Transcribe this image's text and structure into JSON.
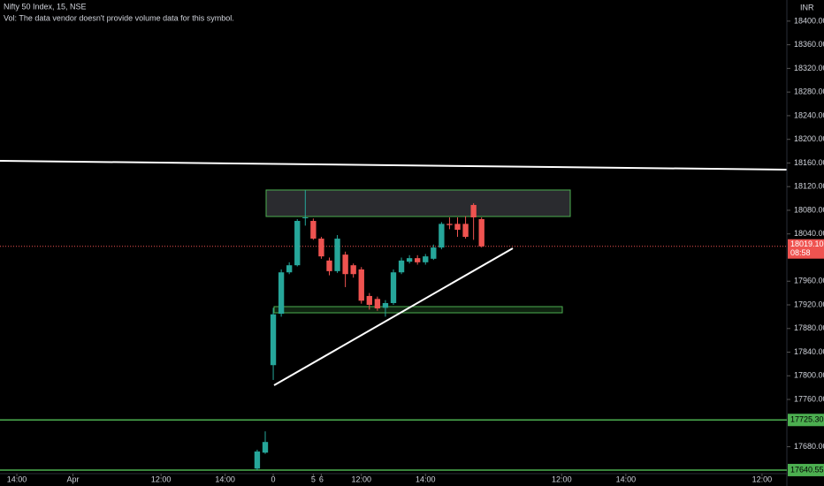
{
  "chart_data": {
    "type": "candlestick",
    "title": "Nifty 50 Index, 15, NSE",
    "subtitle": "Vol: The data vendor doesn't provide volume data for this symbol.",
    "currency": "INR",
    "up_color": "#26a69a",
    "down_color": "#ef5350",
    "x": [
      -2,
      -1,
      0,
      1,
      2,
      3,
      4,
      5,
      6,
      7,
      8,
      9,
      10,
      11,
      12,
      13,
      14,
      15,
      16,
      17,
      18,
      19,
      20,
      21,
      22,
      23,
      24,
      25,
      26
    ],
    "open": [
      17643,
      17670,
      17818,
      17905,
      17975,
      17987,
      18067,
      18062,
      18032,
      17995,
      17977,
      18005,
      17987,
      17980,
      17935,
      17930,
      17915,
      17923,
      17975,
      17993,
      17999,
      17992,
      17998,
      18017,
      18057,
      18057,
      18057,
      18089,
      18065
    ],
    "high": [
      17675,
      17706,
      17915,
      17980,
      17992,
      18065,
      18114,
      18066,
      18035,
      18000,
      18038,
      18010,
      17990,
      17984,
      17940,
      17934,
      17928,
      17980,
      18000,
      18004,
      18004,
      18006,
      18022,
      18060,
      18068,
      18068,
      18070,
      18092,
      18068
    ],
    "low": [
      17640,
      17668,
      17793,
      17900,
      17972,
      17985,
      18054,
      18030,
      17998,
      17970,
      17974,
      17950,
      17966,
      17922,
      17912,
      17910,
      17900,
      17920,
      17972,
      17990,
      17988,
      17988,
      17996,
      18014,
      18048,
      18035,
      18032,
      18030,
      18017
    ],
    "close": [
      17672,
      17688,
      17904,
      17975,
      17987,
      18062,
      18068,
      18032,
      18002,
      17977,
      18032,
      17972,
      17972,
      17927,
      17920,
      17914,
      17923,
      17975,
      17995,
      17999,
      17992,
      18002,
      18017,
      18057,
      18055,
      18047,
      18035,
      18068,
      18019
    ],
    "xlim": [
      -34.1,
      64.1
    ],
    "xticks": [
      {
        "value": -32,
        "label": "14:00"
      },
      {
        "value": -25,
        "label": "Apr"
      },
      {
        "value": -14,
        "label": "12:00"
      },
      {
        "value": -6,
        "label": "14:00"
      },
      0,
      {
        "value": 11,
        "label": "12:00"
      },
      {
        "value": 19,
        "label": "14:00"
      },
      5,
      {
        "value": 36,
        "label": "12:00"
      },
      {
        "value": 44,
        "label": "14:00"
      },
      6,
      {
        "value": 61,
        "label": "12:00"
      }
    ],
    "ylim": [
      17634.5,
      18435.7
    ],
    "yticks": [
      {
        "value": 18400,
        "label": "18400.00"
      },
      {
        "value": 18360,
        "label": "18360.00"
      },
      {
        "value": 18320,
        "label": "18320.00"
      },
      {
        "value": 18280,
        "label": "18280.00"
      },
      {
        "value": 18240,
        "label": "18240.00"
      },
      {
        "value": 18200,
        "label": "18200.00"
      },
      {
        "value": 18160,
        "label": "18160.00"
      },
      {
        "value": 18120,
        "label": "18120.00"
      },
      {
        "value": 18080,
        "label": "18080.00"
      },
      {
        "value": 18040,
        "label": "18040.00"
      },
      {
        "value": 17960,
        "label": "17960.00"
      },
      {
        "value": 17920,
        "label": "17920.00"
      },
      {
        "value": 17880,
        "label": "17880.00"
      },
      {
        "value": 17840,
        "label": "17840.00"
      },
      {
        "value": 17800,
        "label": "17800.00"
      },
      {
        "value": 17760,
        "label": "17760.00"
      },
      {
        "value": 17680,
        "label": "17680.00"
      }
    ],
    "last_price": {
      "value": 18019.1,
      "label": "18019.10",
      "countdown": "08:58"
    },
    "price_lines": [
      {
        "value": 17725.3,
        "label": "17725.30"
      },
      {
        "value": 17640.55,
        "label": "17640.55"
      }
    ]
  }
}
